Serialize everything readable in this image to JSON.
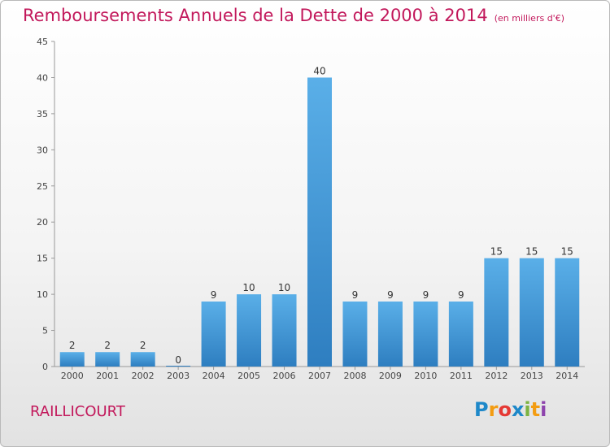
{
  "header": {
    "title": "Remboursements Annuels de la Dette de 2000 à 2014",
    "subtitle": "(en milliers d'€)"
  },
  "commune": "RAILLICOURT",
  "logo": {
    "letters": [
      "P",
      "r",
      "o",
      "x",
      "i",
      "t",
      "i"
    ],
    "colors": [
      "#1e88c9",
      "#f39c12",
      "#e53935",
      "#1e88c9",
      "#7cb342",
      "#f39c12",
      "#8e44ad"
    ]
  },
  "chart_data": {
    "type": "bar",
    "categories": [
      "2000",
      "2001",
      "2002",
      "2003",
      "2004",
      "2005",
      "2006",
      "2007",
      "2008",
      "2009",
      "2010",
      "2011",
      "2012",
      "2013",
      "2014"
    ],
    "values": [
      2,
      2,
      2,
      0,
      9,
      10,
      10,
      40,
      9,
      9,
      9,
      9,
      15,
      15,
      15
    ],
    "ylim": [
      0,
      45
    ],
    "yticks": [
      0,
      5,
      10,
      15,
      20,
      25,
      30,
      35,
      40,
      45
    ],
    "grid": false,
    "bar_color": "#3d93d8"
  }
}
